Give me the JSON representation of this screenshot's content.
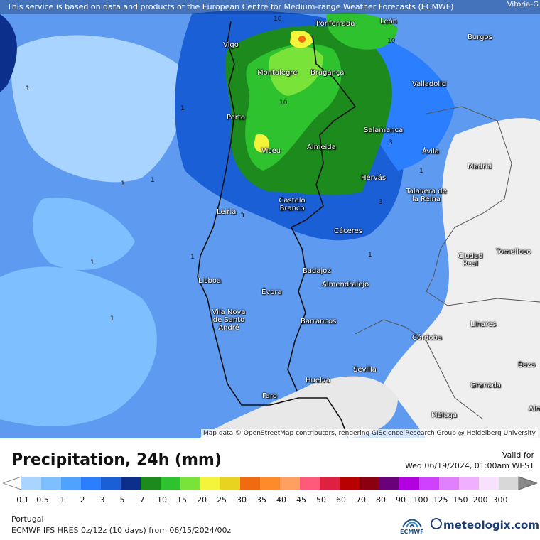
{
  "notice": "This service is based on data and products of the European Centre for Medium-range Weather Forecasts (ECMWF)",
  "corner_label": "Vitoria-G",
  "attribution": "Map data © OpenStreetMap contributors, rendering GIScience Research Group @ Heidelberg University",
  "title": "Precipitation, 24h (mm)",
  "valid_label": "Valid for",
  "valid_date": "Wed 06/19/2024, 01:00am WEST",
  "region": "Portugal",
  "model_line": "ECMWF IFS HRES 0z/12z (10 days) from 06/15/2024/00z",
  "ecmwf_label": "ECMWF",
  "brand": "meteologix.com",
  "scale": {
    "ticks": [
      "0.1",
      "0.5",
      "1",
      "2",
      "3",
      "5",
      "7",
      "10",
      "15",
      "20",
      "25",
      "30",
      "35",
      "40",
      "45",
      "50",
      "60",
      "70",
      "80",
      "90",
      "100",
      "125",
      "150",
      "200",
      "300"
    ],
    "colors": [
      "#a9d4ff",
      "#7ec0ff",
      "#4fa3ff",
      "#2b7fff",
      "#1a5fd6",
      "#0b2f8a",
      "#1d8a1d",
      "#2fc22f",
      "#79e33a",
      "#f4f43a",
      "#e8d420",
      "#f06a10",
      "#ff8a2a",
      "#ffa060",
      "#ff5a7a",
      "#e02040",
      "#b80000",
      "#8a0010",
      "#6a007a",
      "#b200e0",
      "#d040ff",
      "#e080ff",
      "#f0b0ff",
      "#f8e0ff",
      "#d8d8d8"
    ]
  },
  "cities": [
    {
      "name": "Ponferrada"
    },
    {
      "name": "León"
    },
    {
      "name": "Vigo"
    },
    {
      "name": "Burgos"
    },
    {
      "name": "Montalegre"
    },
    {
      "name": "Bragança"
    },
    {
      "name": "Valladolid"
    },
    {
      "name": "Porto"
    },
    {
      "name": "Salamanca"
    },
    {
      "name": "Viseu"
    },
    {
      "name": "Almeida"
    },
    {
      "name": "Ávila"
    },
    {
      "name": "Madrid"
    },
    {
      "name": "Hervás"
    },
    {
      "name": "Talavera de la Reina"
    },
    {
      "name": "Castelo Branco"
    },
    {
      "name": "Leiria"
    },
    {
      "name": "Cáceres"
    },
    {
      "name": "Ciudad Real"
    },
    {
      "name": "Tomelloso"
    },
    {
      "name": "Lisboa"
    },
    {
      "name": "Badajoz"
    },
    {
      "name": "Almendralejo"
    },
    {
      "name": "Évora"
    },
    {
      "name": "Vila Nova de Santo André"
    },
    {
      "name": "Barrancos"
    },
    {
      "name": "Linares"
    },
    {
      "name": "Córdoba"
    },
    {
      "name": "Baza"
    },
    {
      "name": "Sevilla"
    },
    {
      "name": "Huelva"
    },
    {
      "name": "Granada"
    },
    {
      "name": "Faro"
    },
    {
      "name": "Málaga"
    },
    {
      "name": "Alm"
    }
  ],
  "isolines": [
    "10",
    "10",
    "10",
    "1",
    "1",
    "1",
    "1",
    "1",
    "3",
    "1",
    "3",
    "1",
    "1",
    "1",
    "1",
    "3"
  ]
}
